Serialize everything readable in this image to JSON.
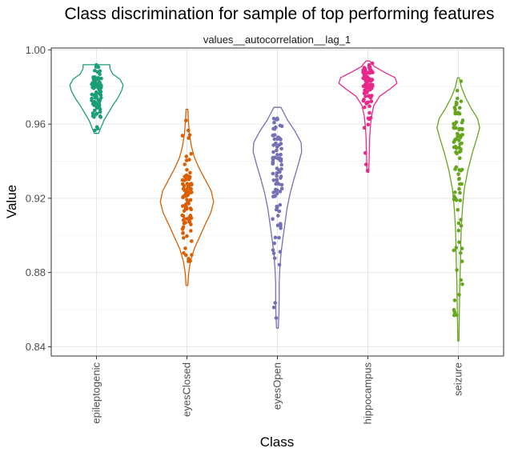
{
  "chart_data": {
    "type": "violin",
    "title": "Class discrimination for sample of top performing features",
    "facet_label": "values__autocorrelation__lag_1",
    "xlabel": "Class",
    "ylabel": "Value",
    "ylim": [
      0.835,
      1.001
    ],
    "y_ticks": [
      "0.84",
      "0.88",
      "0.92",
      "0.96",
      "1.00"
    ],
    "y_tick_values": [
      0.84,
      0.88,
      0.92,
      0.96,
      1.0
    ],
    "grid": true,
    "legend": "none",
    "categories": [
      "epileptogenic",
      "eyesClosed",
      "eyesOpen",
      "hippocampus",
      "seizure"
    ],
    "series": [
      {
        "category": "epileptogenic",
        "color": "#1b9e77",
        "min": 0.955,
        "max": 0.992,
        "profile": [
          [
            0.955,
            0.07
          ],
          [
            0.958,
            0.15
          ],
          [
            0.962,
            0.25
          ],
          [
            0.966,
            0.4
          ],
          [
            0.97,
            0.55
          ],
          [
            0.974,
            0.72
          ],
          [
            0.978,
            0.85
          ],
          [
            0.981,
            0.9
          ],
          [
            0.984,
            0.8
          ],
          [
            0.987,
            0.55
          ],
          [
            0.99,
            0.45
          ],
          [
            0.992,
            0.45
          ]
        ]
      },
      {
        "category": "eyesClosed",
        "color": "#d95f02",
        "min": 0.873,
        "max": 0.968,
        "profile": [
          [
            0.873,
            0.03
          ],
          [
            0.88,
            0.06
          ],
          [
            0.886,
            0.12
          ],
          [
            0.893,
            0.25
          ],
          [
            0.9,
            0.45
          ],
          [
            0.906,
            0.62
          ],
          [
            0.912,
            0.8
          ],
          [
            0.918,
            0.9
          ],
          [
            0.924,
            0.82
          ],
          [
            0.93,
            0.62
          ],
          [
            0.936,
            0.42
          ],
          [
            0.942,
            0.25
          ],
          [
            0.948,
            0.15
          ],
          [
            0.955,
            0.08
          ],
          [
            0.962,
            0.05
          ],
          [
            0.968,
            0.03
          ]
        ]
      },
      {
        "category": "eyesOpen",
        "color": "#7570b3",
        "min": 0.85,
        "max": 0.969,
        "profile": [
          [
            0.85,
            0.03
          ],
          [
            0.858,
            0.05
          ],
          [
            0.866,
            0.06
          ],
          [
            0.874,
            0.06
          ],
          [
            0.882,
            0.08
          ],
          [
            0.89,
            0.12
          ],
          [
            0.898,
            0.18
          ],
          [
            0.906,
            0.25
          ],
          [
            0.914,
            0.32
          ],
          [
            0.922,
            0.42
          ],
          [
            0.93,
            0.55
          ],
          [
            0.938,
            0.7
          ],
          [
            0.945,
            0.82
          ],
          [
            0.95,
            0.8
          ],
          [
            0.956,
            0.6
          ],
          [
            0.962,
            0.35
          ],
          [
            0.969,
            0.12
          ]
        ]
      },
      {
        "category": "hippocampus",
        "color": "#e7298a",
        "min": 0.934,
        "max": 0.994,
        "profile": [
          [
            0.934,
            0.03
          ],
          [
            0.94,
            0.04
          ],
          [
            0.946,
            0.05
          ],
          [
            0.952,
            0.06
          ],
          [
            0.958,
            0.08
          ],
          [
            0.964,
            0.12
          ],
          [
            0.97,
            0.2
          ],
          [
            0.975,
            0.4
          ],
          [
            0.979,
            0.75
          ],
          [
            0.982,
            0.98
          ],
          [
            0.985,
            0.92
          ],
          [
            0.988,
            0.55
          ],
          [
            0.991,
            0.22
          ],
          [
            0.994,
            0.06
          ]
        ]
      },
      {
        "category": "seizure",
        "color": "#66a61e",
        "min": 0.843,
        "max": 0.985,
        "profile": [
          [
            0.843,
            0.02
          ],
          [
            0.855,
            0.03
          ],
          [
            0.865,
            0.04
          ],
          [
            0.875,
            0.05
          ],
          [
            0.885,
            0.07
          ],
          [
            0.895,
            0.08
          ],
          [
            0.905,
            0.1
          ],
          [
            0.915,
            0.14
          ],
          [
            0.925,
            0.2
          ],
          [
            0.935,
            0.32
          ],
          [
            0.945,
            0.48
          ],
          [
            0.952,
            0.62
          ],
          [
            0.958,
            0.72
          ],
          [
            0.963,
            0.65
          ],
          [
            0.968,
            0.45
          ],
          [
            0.974,
            0.25
          ],
          [
            0.98,
            0.1
          ],
          [
            0.985,
            0.03
          ]
        ]
      }
    ]
  }
}
